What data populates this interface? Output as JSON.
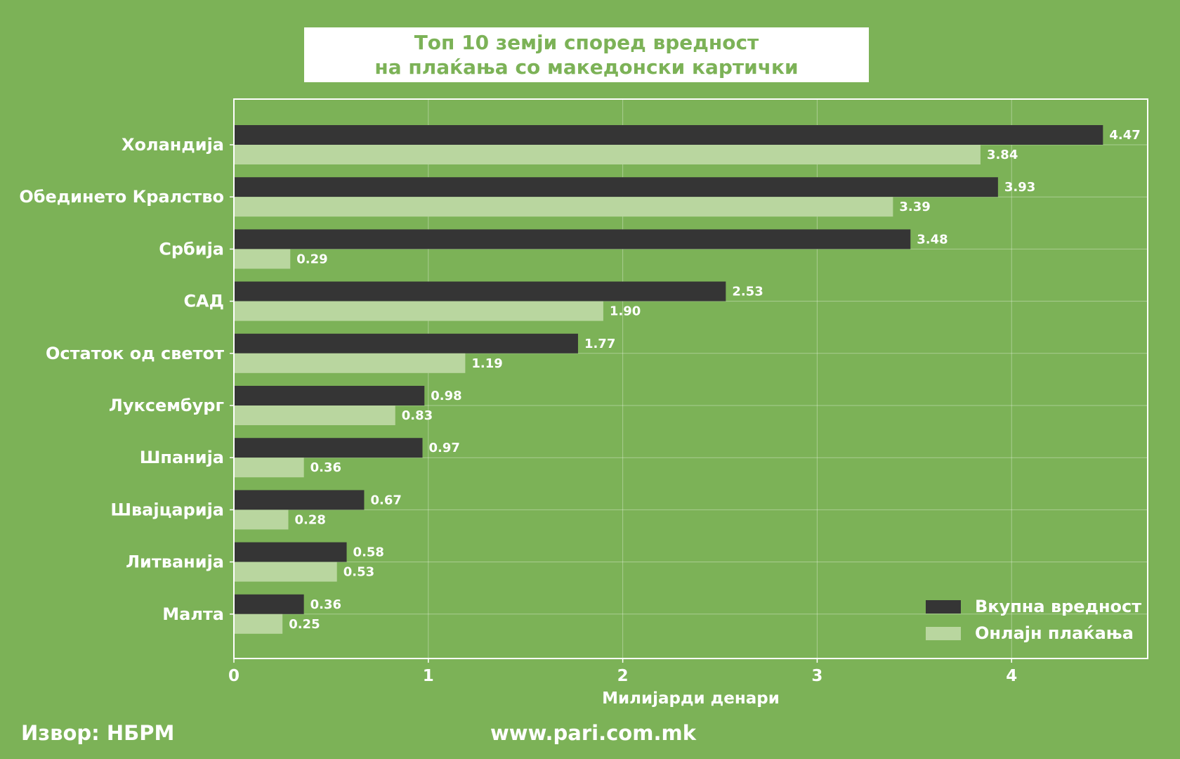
{
  "chart_data": {
    "type": "bar",
    "orientation": "horizontal",
    "title_lines": [
      "Топ 10 земји според вредност",
      "на плаќања со македонски картички"
    ],
    "xlabel": "Милијарди денари",
    "ylabel": "",
    "xlim": [
      0,
      4.7
    ],
    "xticks": [
      "0",
      "1",
      "2",
      "3",
      "4"
    ],
    "grid": true,
    "legend_position": "bottom-right",
    "categories": [
      "Холандија",
      "Обединето Кралство",
      "Србија",
      "САД",
      "Остаток од светот",
      "Луксембург",
      "Шпанија",
      "Швајцарија",
      "Литванија",
      "Малта"
    ],
    "series": [
      {
        "name": "Вкупна вредност",
        "color": "#353535",
        "values": [
          4.47,
          3.93,
          3.48,
          2.53,
          1.77,
          0.98,
          0.97,
          0.67,
          0.58,
          0.36
        ],
        "labels": [
          "4.47",
          "3.93",
          "3.48",
          "2.53",
          "1.77",
          "0.98",
          "0.97",
          "0.67",
          "0.58",
          "0.36"
        ]
      },
      {
        "name": "Онлајн плаќања",
        "color": "#b9d69f",
        "values": [
          3.84,
          3.39,
          0.29,
          1.9,
          1.19,
          0.83,
          0.36,
          0.28,
          0.53,
          0.25
        ],
        "labels": [
          "3.84",
          "3.39",
          "0.29",
          "1.90",
          "1.19",
          "0.83",
          "0.36",
          "0.28",
          "0.53",
          "0.25"
        ]
      }
    ]
  },
  "footer": {
    "source": "Извор: НБРМ",
    "site": "www.pari.com.mk"
  },
  "colors": {
    "background": "#7cb257",
    "title_text": "#7cb257",
    "text": "#ffffff"
  }
}
